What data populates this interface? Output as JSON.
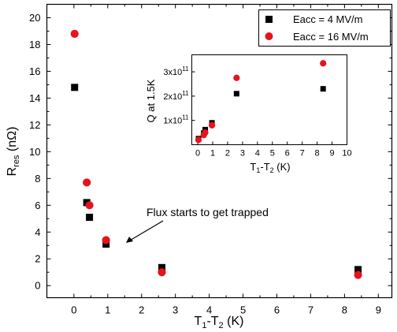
{
  "chart_data": [
    {
      "type": "scatter",
      "title": "",
      "xlabel": "T",
      "xlabel_sub1": "1",
      "xlabel_mid": "-T",
      "xlabel_sub2": "2",
      "xlabel_suffix": " (K)",
      "ylabel": "R",
      "ylabel_sub": "res",
      "ylabel_suffix": " (nΩ)",
      "xlim": [
        -0.8,
        9.4
      ],
      "ylim": [
        -0.9,
        21
      ],
      "xticks": [
        0,
        1,
        2,
        3,
        4,
        5,
        6,
        7,
        8,
        9
      ],
      "yticks": [
        0,
        2,
        4,
        6,
        8,
        10,
        12,
        14,
        16,
        18,
        20
      ],
      "grid": false,
      "legend": "top-right",
      "series": [
        {
          "name": "Eacc = 4 MV/m",
          "marker": "square",
          "color": "#000000",
          "x": [
            0.02,
            0.38,
            0.46,
            0.95,
            2.6,
            8.4
          ],
          "y": [
            14.8,
            6.2,
            5.1,
            3.1,
            1.35,
            1.2
          ]
        },
        {
          "name": "Eacc = 16 MV/m",
          "marker": "circle",
          "color": "#e8121e",
          "x": [
            0.02,
            0.38,
            0.46,
            0.95,
            2.6,
            8.4
          ],
          "y": [
            18.8,
            7.7,
            6.0,
            3.4,
            1.0,
            0.8
          ]
        }
      ],
      "annotations": [
        {
          "text": "Flux starts to get trapped"
        }
      ]
    },
    {
      "type": "scatter",
      "title": "",
      "xlabel": "T",
      "xlabel_sub1": "1",
      "xlabel_mid": "-T",
      "xlabel_sub2": "2",
      "xlabel_suffix": " (K)",
      "ylabel": "Q at 1.5K",
      "xlim": [
        -0.4,
        10
      ],
      "ylim": [
        0,
        3.7
      ],
      "xticks": [
        0,
        1,
        2,
        3,
        4,
        5,
        6,
        7,
        8,
        9,
        10
      ],
      "yticks": [
        1,
        2,
        3
      ],
      "ytick_base": "x10",
      "ytick_exp": "11",
      "grid": false,
      "series": [
        {
          "name": "Eacc = 4 MV/m",
          "marker": "square",
          "color": "#000000",
          "x": [
            0.05,
            0.4,
            0.5,
            0.95,
            2.6,
            8.4
          ],
          "y": [
            0.25,
            0.48,
            0.62,
            0.9,
            2.1,
            2.3
          ]
        },
        {
          "name": "Eacc = 16 MV/m",
          "marker": "circle",
          "color": "#e8121e",
          "x": [
            0.05,
            0.4,
            0.5,
            0.95,
            2.6,
            8.4
          ],
          "y": [
            0.2,
            0.4,
            0.5,
            0.8,
            2.75,
            3.35
          ]
        }
      ]
    }
  ]
}
